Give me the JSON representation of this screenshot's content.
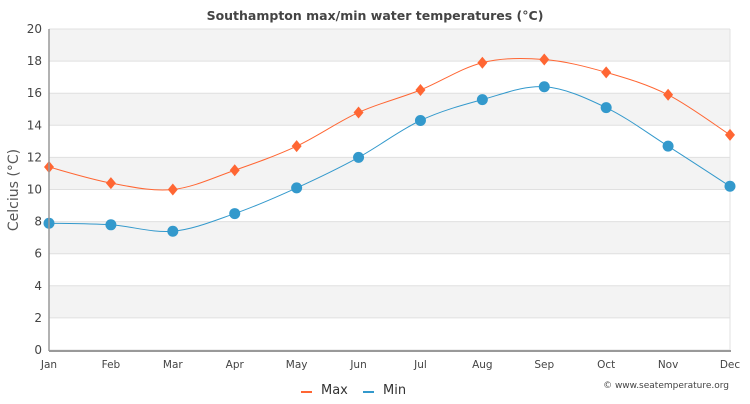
{
  "chart_data": {
    "type": "line",
    "title": "Southampton max/min water temperatures (°C)",
    "xlabel": "",
    "ylabel": "Celcius (°C)",
    "categories": [
      "Jan",
      "Feb",
      "Mar",
      "Apr",
      "May",
      "Jun",
      "Jul",
      "Aug",
      "Sep",
      "Oct",
      "Nov",
      "Dec"
    ],
    "ylim": [
      0,
      20
    ],
    "yticks": [
      0,
      2,
      4,
      6,
      8,
      10,
      12,
      14,
      16,
      18,
      20
    ],
    "grid": true,
    "legend_position": "bottom",
    "series": [
      {
        "name": "Max",
        "color": "#ff6633",
        "marker": "diamond",
        "values": [
          11.4,
          10.4,
          10.0,
          11.2,
          12.7,
          14.8,
          16.2,
          17.9,
          18.1,
          17.3,
          15.9,
          13.4
        ]
      },
      {
        "name": "Min",
        "color": "#3399cc",
        "marker": "circle",
        "values": [
          7.9,
          7.8,
          7.4,
          8.5,
          10.1,
          12.0,
          14.3,
          15.6,
          16.4,
          15.1,
          12.7,
          10.2
        ]
      }
    ],
    "credit": "© www.seatemperature.org"
  }
}
